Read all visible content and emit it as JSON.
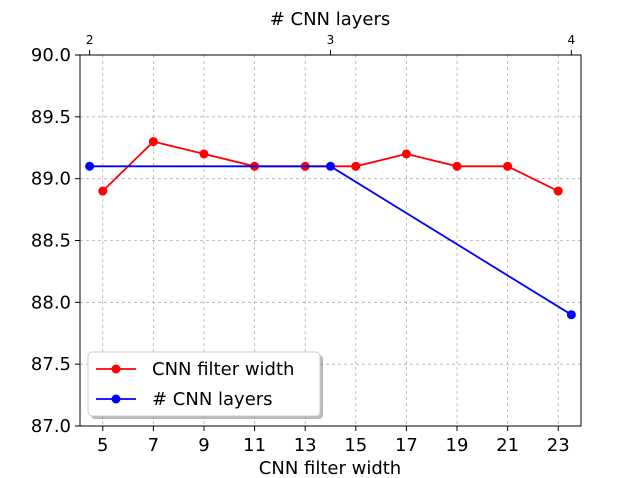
{
  "chart_data": {
    "type": "line",
    "xlabel": "CNN filter width",
    "x2label": "# CNN layers",
    "xticks": [
      5,
      7,
      9,
      11,
      13,
      15,
      17,
      19,
      21,
      23
    ],
    "xlim": [
      4.1,
      23.9
    ],
    "x2ticks": [
      2,
      3,
      4
    ],
    "x2lim": [
      1.96,
      4.04
    ],
    "yticks": [
      "87.0",
      "87.5",
      "88.0",
      "88.5",
      "89.0",
      "89.5",
      "90.0"
    ],
    "ylim": [
      87.0,
      90.0
    ],
    "grid": true,
    "legend_position": "lower-left",
    "series": [
      {
        "name": "CNN filter width",
        "axis": "bottom",
        "color": "#ff0000",
        "x": [
          5,
          7,
          9,
          11,
          13,
          15,
          17,
          19,
          21,
          23
        ],
        "y": [
          88.9,
          89.3,
          89.2,
          89.1,
          89.1,
          89.1,
          89.2,
          89.1,
          89.1,
          88.9
        ]
      },
      {
        "name": "# CNN layers",
        "axis": "top",
        "color": "#0000ff",
        "x": [
          2,
          3,
          4
        ],
        "y": [
          89.1,
          89.1,
          87.9
        ]
      }
    ]
  }
}
